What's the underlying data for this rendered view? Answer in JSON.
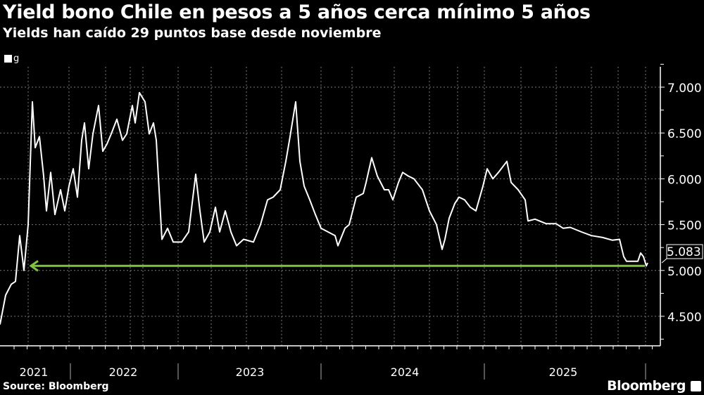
{
  "header": {
    "title": "Yield bono Chile en pesos a 5 años cerca mínimo 5 años",
    "subtitle": "Yields han caído 29 puntos base desde noviembre"
  },
  "footer": {
    "source": "Source: Bloomberg",
    "brand": "Bloomberg"
  },
  "colors": {
    "background": "#000000",
    "line": "#ffffff",
    "arrow": "#7dc243",
    "grid": "#777777"
  },
  "chart_data": {
    "type": "line",
    "title": "Yield bono Chile en pesos a 5 años cerca mínimo 5 años",
    "subtitle": "Yields han caído 29 puntos base desde noviembre",
    "legend": {
      "entries": [
        "g"
      ],
      "placement": "top-left"
    },
    "x_ticks": [
      "2021",
      "2022",
      "2023",
      "2024",
      "2025"
    ],
    "y_ticks": [
      "4.500",
      "5.000",
      "5.500",
      "6.000",
      "6.500",
      "7.000"
    ],
    "y_axis_side": "right",
    "ylim": [
      4.2,
      7.2
    ],
    "xlim": [
      2020.8,
      2025.48
    ],
    "grid": true,
    "last_value_label": "5.083",
    "annotation": {
      "type": "arrow",
      "direction": "left",
      "y": 5.05,
      "from_x": 2025.38,
      "to_x": 2021.02
    },
    "series": [
      {
        "name": "g",
        "points": [
          [
            2020.8,
            4.41
          ],
          [
            2020.84,
            4.73
          ],
          [
            2020.88,
            4.85
          ],
          [
            2020.91,
            4.88
          ],
          [
            2020.94,
            5.38
          ],
          [
            2020.97,
            5.0
          ],
          [
            2021.0,
            5.5
          ],
          [
            2021.03,
            6.84
          ],
          [
            2021.05,
            6.34
          ],
          [
            2021.08,
            6.46
          ],
          [
            2021.11,
            6.03
          ],
          [
            2021.13,
            5.65
          ],
          [
            2021.16,
            6.07
          ],
          [
            2021.19,
            5.61
          ],
          [
            2021.23,
            5.88
          ],
          [
            2021.26,
            5.65
          ],
          [
            2021.29,
            5.92
          ],
          [
            2021.32,
            6.11
          ],
          [
            2021.35,
            5.8
          ],
          [
            2021.38,
            6.42
          ],
          [
            2021.4,
            6.61
          ],
          [
            2021.43,
            6.11
          ],
          [
            2021.46,
            6.49
          ],
          [
            2021.5,
            6.8
          ],
          [
            2021.53,
            6.3
          ],
          [
            2021.56,
            6.38
          ],
          [
            2021.59,
            6.49
          ],
          [
            2021.63,
            6.65
          ],
          [
            2021.67,
            6.42
          ],
          [
            2021.7,
            6.49
          ],
          [
            2021.74,
            6.8
          ],
          [
            2021.76,
            6.61
          ],
          [
            2021.79,
            6.94
          ],
          [
            2021.83,
            6.84
          ],
          [
            2021.86,
            6.49
          ],
          [
            2021.89,
            6.61
          ],
          [
            2021.91,
            6.42
          ],
          [
            2021.95,
            5.34
          ],
          [
            2021.99,
            5.46
          ],
          [
            2022.03,
            5.31
          ],
          [
            2022.09,
            5.31
          ],
          [
            2022.14,
            5.42
          ],
          [
            2022.19,
            6.05
          ],
          [
            2022.22,
            5.65
          ],
          [
            2022.25,
            5.31
          ],
          [
            2022.29,
            5.42
          ],
          [
            2022.33,
            5.69
          ],
          [
            2022.36,
            5.42
          ],
          [
            2022.4,
            5.65
          ],
          [
            2022.44,
            5.42
          ],
          [
            2022.48,
            5.27
          ],
          [
            2022.53,
            5.34
          ],
          [
            2022.6,
            5.31
          ],
          [
            2022.65,
            5.5
          ],
          [
            2022.7,
            5.77
          ],
          [
            2022.74,
            5.8
          ],
          [
            2022.79,
            5.88
          ],
          [
            2022.83,
            6.19
          ],
          [
            2022.86,
            6.46
          ],
          [
            2022.9,
            6.84
          ],
          [
            2022.93,
            6.19
          ],
          [
            2022.96,
            5.92
          ],
          [
            2023.0,
            5.77
          ],
          [
            2023.04,
            5.61
          ],
          [
            2023.08,
            5.46
          ],
          [
            2023.13,
            5.42
          ],
          [
            2023.18,
            5.38
          ],
          [
            2023.2,
            5.27
          ],
          [
            2023.25,
            5.46
          ],
          [
            2023.28,
            5.5
          ],
          [
            2023.33,
            5.8
          ],
          [
            2023.38,
            5.84
          ],
          [
            2023.4,
            5.96
          ],
          [
            2023.44,
            6.23
          ],
          [
            2023.48,
            6.03
          ],
          [
            2023.53,
            5.88
          ],
          [
            2023.56,
            5.88
          ],
          [
            2023.59,
            5.77
          ],
          [
            2023.63,
            5.96
          ],
          [
            2023.66,
            6.07
          ],
          [
            2023.7,
            6.03
          ],
          [
            2023.74,
            6.0
          ],
          [
            2023.78,
            5.92
          ],
          [
            2023.8,
            5.88
          ],
          [
            2023.85,
            5.65
          ],
          [
            2023.9,
            5.5
          ],
          [
            2023.94,
            5.23
          ],
          [
            2023.96,
            5.34
          ],
          [
            2023.99,
            5.57
          ],
          [
            2024.03,
            5.73
          ],
          [
            2024.06,
            5.8
          ],
          [
            2024.1,
            5.77
          ],
          [
            2024.14,
            5.69
          ],
          [
            2024.18,
            5.65
          ],
          [
            2024.23,
            5.92
          ],
          [
            2024.26,
            6.11
          ],
          [
            2024.3,
            6.0
          ],
          [
            2024.34,
            6.07
          ],
          [
            2024.38,
            6.15
          ],
          [
            2024.4,
            6.19
          ],
          [
            2024.43,
            5.96
          ],
          [
            2024.48,
            5.88
          ],
          [
            2024.53,
            5.77
          ],
          [
            2024.55,
            5.54
          ],
          [
            2024.6,
            5.56
          ],
          [
            2024.68,
            5.51
          ],
          [
            2024.75,
            5.51
          ],
          [
            2024.8,
            5.46
          ],
          [
            2024.85,
            5.47
          ],
          [
            2024.93,
            5.42
          ],
          [
            2025.0,
            5.38
          ],
          [
            2025.08,
            5.36
          ],
          [
            2025.15,
            5.33
          ],
          [
            2025.2,
            5.34
          ],
          [
            2025.23,
            5.15
          ],
          [
            2025.25,
            5.1
          ],
          [
            2025.33,
            5.1
          ],
          [
            2025.35,
            5.19
          ],
          [
            2025.37,
            5.15
          ],
          [
            2025.39,
            5.05
          ],
          [
            2025.4,
            5.083
          ]
        ]
      }
    ]
  }
}
